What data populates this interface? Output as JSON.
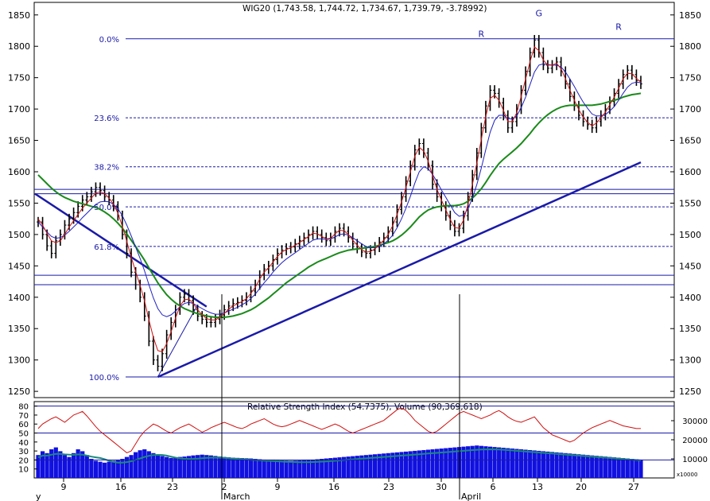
{
  "chart_data": [
    {
      "type": "line",
      "title": "WIG20 (1,743.58, 1,744.72, 1,734.67, 1,739.79, -3.78992)",
      "ylim": [
        1240,
        1870
      ],
      "y_ticks": [
        1250,
        1300,
        1350,
        1400,
        1450,
        1500,
        1550,
        1600,
        1650,
        1700,
        1750,
        1800,
        1850
      ],
      "x_tick_labels": [
        "9",
        "16",
        "23",
        "2",
        "9",
        "16",
        "23",
        "30",
        "6",
        "13",
        "20",
        "27"
      ],
      "month_labels": [
        "March",
        "April"
      ],
      "left_edge_label": "y",
      "price": [
        1520,
        1500,
        1482,
        1470,
        1490,
        1500,
        1515,
        1525,
        1535,
        1545,
        1555,
        1560,
        1568,
        1575,
        1570,
        1560,
        1555,
        1545,
        1530,
        1500,
        1470,
        1440,
        1420,
        1400,
        1370,
        1330,
        1300,
        1290,
        1310,
        1340,
        1360,
        1380,
        1400,
        1405,
        1395,
        1380,
        1370,
        1365,
        1360,
        1360,
        1365,
        1372,
        1380,
        1386,
        1390,
        1392,
        1395,
        1400,
        1410,
        1420,
        1435,
        1445,
        1450,
        1460,
        1470,
        1475,
        1478,
        1480,
        1485,
        1490,
        1495,
        1500,
        1505,
        1500,
        1495,
        1490,
        1495,
        1505,
        1510,
        1505,
        1495,
        1485,
        1478,
        1472,
        1470,
        1475,
        1480,
        1488,
        1495,
        1505,
        1520,
        1540,
        1560,
        1585,
        1610,
        1635,
        1645,
        1630,
        1610,
        1580,
        1560,
        1545,
        1530,
        1515,
        1505,
        1510,
        1530,
        1560,
        1595,
        1630,
        1670,
        1705,
        1730,
        1725,
        1710,
        1690,
        1670,
        1680,
        1700,
        1730,
        1760,
        1790,
        1810,
        1790,
        1770,
        1765,
        1770,
        1775,
        1760,
        1740,
        1720,
        1705,
        1690,
        1680,
        1675,
        1670,
        1680,
        1690,
        1700,
        1712,
        1725,
        1740,
        1755,
        1762,
        1755,
        1745,
        1740
      ],
      "ma_short": [
        1525,
        1515,
        1502,
        1490,
        1487,
        1490,
        1500,
        1512,
        1522,
        1532,
        1542,
        1550,
        1558,
        1566,
        1568,
        1565,
        1558,
        1548,
        1534,
        1513,
        1489,
        1464,
        1441,
        1419,
        1394,
        1364,
        1336,
        1315,
        1313,
        1326,
        1345,
        1367,
        1386,
        1396,
        1397,
        1390,
        1380,
        1372,
        1366,
        1364,
        1364,
        1368,
        1374,
        1381,
        1386,
        1390,
        1393,
        1398,
        1406,
        1416,
        1429,
        1440,
        1447,
        1456,
        1465,
        1472,
        1476,
        1479,
        1483,
        1487,
        1492,
        1497,
        1502,
        1501,
        1497,
        1493,
        1494,
        1501,
        1507,
        1506,
        1500,
        1491,
        1483,
        1476,
        1472,
        1473,
        1477,
        1484,
        1491,
        1500,
        1514,
        1532,
        1552,
        1575,
        1600,
        1625,
        1639,
        1633,
        1617,
        1594,
        1572,
        1555,
        1539,
        1524,
        1511,
        1510,
        1523,
        1548,
        1580,
        1614,
        1652,
        1688,
        1717,
        1722,
        1714,
        1698,
        1680,
        1680,
        1694,
        1720,
        1748,
        1776,
        1799,
        1793,
        1778,
        1770,
        1770,
        1773,
        1764,
        1748,
        1730,
        1714,
        1699,
        1687,
        1679,
        1673,
        1678,
        1686,
        1695,
        1707,
        1719,
        1733,
        1748,
        1757,
        1756,
        1749,
        1743
      ],
      "ma_medium": [
        1520,
        1512,
        1504,
        1497,
        1494,
        1495,
        1499,
        1505,
        1512,
        1519,
        1527,
        1534,
        1541,
        1548,
        1552,
        1553,
        1552,
        1548,
        1541,
        1530,
        1515,
        1498,
        1480,
        1462,
        1442,
        1420,
        1399,
        1382,
        1372,
        1369,
        1372,
        1378,
        1385,
        1390,
        1392,
        1390,
        1386,
        1382,
        1378,
        1375,
        1373,
        1373,
        1375,
        1378,
        1381,
        1384,
        1388,
        1392,
        1398,
        1405,
        1414,
        1423,
        1431,
        1440,
        1448,
        1455,
        1461,
        1466,
        1471,
        1476,
        1481,
        1486,
        1491,
        1493,
        1493,
        1492,
        1493,
        1496,
        1500,
        1501,
        1499,
        1495,
        1490,
        1485,
        1481,
        1479,
        1479,
        1481,
        1485,
        1491,
        1499,
        1511,
        1525,
        1542,
        1561,
        1582,
        1600,
        1608,
        1605,
        1596,
        1584,
        1571,
        1559,
        1547,
        1535,
        1529,
        1531,
        1541,
        1558,
        1580,
        1606,
        1635,
        1663,
        1682,
        1690,
        1690,
        1685,
        1684,
        1689,
        1702,
        1719,
        1739,
        1759,
        1770,
        1772,
        1771,
        1770,
        1770,
        1767,
        1759,
        1748,
        1736,
        1723,
        1711,
        1701,
        1692,
        1689,
        1689,
        1691,
        1697,
        1704,
        1714,
        1725,
        1735,
        1741,
        1743,
        1742
      ],
      "ma_long": [
        1595,
        1588,
        1581,
        1574,
        1568,
        1563,
        1559,
        1556,
        1553,
        1551,
        1549,
        1547,
        1545,
        1543,
        1540,
        1536,
        1531,
        1525,
        1518,
        1510,
        1501,
        1491,
        1481,
        1470,
        1459,
        1447,
        1435,
        1423,
        1413,
        1404,
        1397,
        1391,
        1386,
        1382,
        1379,
        1376,
        1374,
        1372,
        1370,
        1369,
        1368,
        1368,
        1368,
        1369,
        1370,
        1372,
        1374,
        1377,
        1380,
        1384,
        1389,
        1394,
        1399,
        1405,
        1411,
        1417,
        1423,
        1428,
        1433,
        1438,
        1443,
        1448,
        1452,
        1456,
        1459,
        1462,
        1465,
        1468,
        1471,
        1473,
        1475,
        1476,
        1477,
        1478,
        1479,
        1480,
        1481,
        1483,
        1485,
        1487,
        1490,
        1494,
        1499,
        1505,
        1512,
        1520,
        1528,
        1534,
        1539,
        1542,
        1544,
        1545,
        1546,
        1546,
        1546,
        1547,
        1549,
        1553,
        1558,
        1565,
        1573,
        1583,
        1594,
        1604,
        1613,
        1620,
        1626,
        1632,
        1638,
        1645,
        1653,
        1661,
        1670,
        1678,
        1685,
        1691,
        1696,
        1700,
        1703,
        1705,
        1706,
        1706,
        1706,
        1706,
        1706,
        1706,
        1707,
        1708,
        1710,
        1712,
        1714,
        1716,
        1719,
        1721,
        1723,
        1724,
        1725
      ],
      "fibonacci_levels": [
        {
          "label": "0.0%",
          "value": 1812
        },
        {
          "label": "23.6%",
          "value": 1686
        },
        {
          "label": "38.2%",
          "value": 1608
        },
        {
          "label": "50.0%",
          "value": 1544
        },
        {
          "label": "61.8%",
          "value": 1481
        },
        {
          "label": "100.0%",
          "value": 1273
        }
      ],
      "horizontal_lines": [
        1572,
        1565,
        1435,
        1420
      ],
      "annotations": [
        {
          "text": "R",
          "x_index": 100,
          "value": 1815
        },
        {
          "text": "G",
          "x_index": 113,
          "value": 1848
        },
        {
          "text": "R",
          "x_index": 131,
          "value": 1826
        }
      ]
    },
    {
      "type": "bar",
      "title": "Relative Strength Index (54.7375), Volume (90,369,618)",
      "ylim_rsi": [
        0,
        85
      ],
      "ylim_volume": [
        0,
        40000
      ],
      "left_ticks": [
        10,
        20,
        30,
        40,
        50,
        60,
        70,
        80
      ],
      "right_ticks": [
        10000,
        20000,
        30000
      ],
      "scale_label": "x10000",
      "rsi_levels": [
        80,
        50,
        20
      ],
      "rsi": [
        55,
        60,
        63,
        66,
        68,
        65,
        62,
        66,
        70,
        72,
        74,
        69,
        63,
        57,
        52,
        48,
        44,
        40,
        36,
        32,
        28,
        30,
        38,
        46,
        52,
        56,
        60,
        58,
        55,
        52,
        50,
        53,
        56,
        58,
        60,
        57,
        54,
        51,
        53,
        56,
        58,
        60,
        62,
        60,
        58,
        56,
        55,
        57,
        60,
        62,
        64,
        66,
        63,
        60,
        58,
        57,
        58,
        60,
        62,
        64,
        62,
        60,
        58,
        56,
        54,
        56,
        58,
        60,
        58,
        55,
        52,
        50,
        52,
        54,
        56,
        58,
        60,
        62,
        64,
        68,
        72,
        76,
        78,
        75,
        70,
        64,
        60,
        56,
        52,
        50,
        52,
        56,
        60,
        64,
        68,
        72,
        74,
        72,
        70,
        68,
        66,
        68,
        70,
        73,
        75,
        72,
        68,
        65,
        63,
        62,
        64,
        66,
        68,
        62,
        56,
        52,
        48,
        46,
        44,
        42,
        40,
        42,
        46,
        50,
        53,
        56,
        58,
        60,
        62,
        64,
        62,
        60,
        58,
        57,
        56,
        55,
        55
      ],
      "volume": [
        12000,
        14000,
        13000,
        15000,
        16000,
        14000,
        12000,
        11000,
        13000,
        15000,
        14000,
        12000,
        10000,
        9000,
        8500,
        8000,
        8500,
        9000,
        9500,
        10000,
        11000,
        12000,
        13500,
        14500,
        15000,
        14000,
        13000,
        12000,
        11500,
        11000,
        10500,
        10800,
        11000,
        11200,
        11500,
        11800,
        12000,
        12200,
        12000,
        11800,
        11500,
        11200,
        11000,
        10800,
        10600,
        10500,
        10400,
        10300,
        10200,
        10000,
        9800,
        9600,
        9500,
        9400,
        9300,
        9200,
        9100,
        9000,
        9100,
        9200,
        9300,
        9400,
        9600,
        9800,
        10000,
        10200,
        10400,
        10600,
        10800,
        11000,
        11200,
        11400,
        11600,
        11800,
        12000,
        12200,
        12400,
        12600,
        12800,
        13000,
        13200,
        13400,
        13600,
        13800,
        14000,
        14200,
        14400,
        14600,
        14800,
        15000,
        15200,
        15400,
        15600,
        15800,
        16000,
        16200,
        16400,
        16600,
        16800,
        17000,
        16800,
        16600,
        16400,
        16200,
        16000,
        15800,
        15600,
        15400,
        15200,
        15000,
        14800,
        14600,
        14400,
        14200,
        14000,
        13800,
        13600,
        13400,
        13200,
        13000,
        12800,
        12600,
        12400,
        12200,
        12000,
        11800,
        11600,
        11400,
        11200,
        11000,
        10800,
        10600,
        10400,
        10200,
        10000,
        9800,
        9600
      ]
    }
  ]
}
